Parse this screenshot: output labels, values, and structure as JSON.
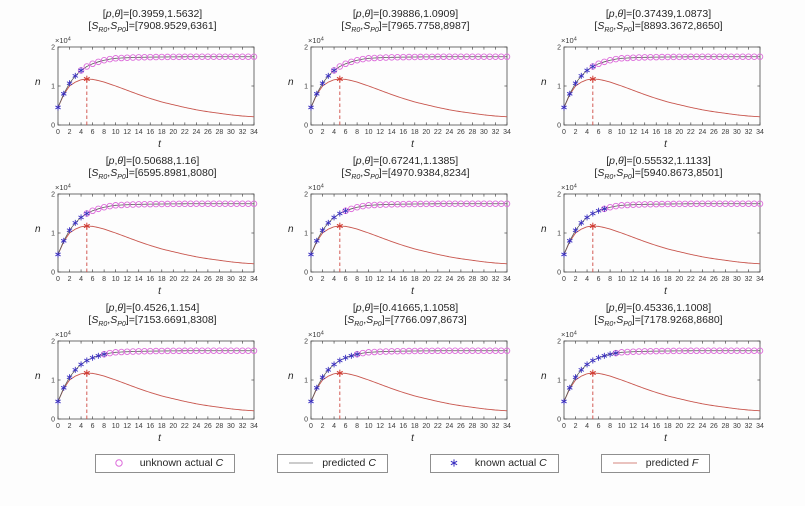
{
  "figure": {
    "background": "#fdfdfd",
    "labels": {
      "open_bracket": "[",
      "p": "p",
      "comma": ",",
      "theta": "θ",
      "close_eq": "]=",
      "S": "S",
      "sub_R0": "R0",
      "comma_S": ",",
      "sub_P0": "P0",
      "times_ten": "×10",
      "exponent": "4"
    },
    "colors": {
      "unknown_actual_C": "#dd6cdb",
      "predicted_C": "#5a5a5a",
      "known_actual_C": "#3a2fc1",
      "predicted_F": "#c8564e",
      "predicted_F_legend": "#d4877f",
      "predicted_C_legend": "#9a9a9a",
      "peak_marker": "#d23b32",
      "peak_dash": "#cf4a42",
      "axis": "#4a4a4a",
      "tick_text": "#3a3a3a"
    }
  },
  "chart_data": {
    "type": "line",
    "common": {
      "xlabel": "t",
      "ylabel": "n",
      "y_multiplier": "×10^4",
      "xlim": [
        0,
        34
      ],
      "ylim_scaled": [
        0,
        2
      ],
      "x_ticks": [
        0,
        2,
        4,
        6,
        8,
        10,
        12,
        14,
        16,
        18,
        20,
        22,
        24,
        26,
        28,
        30,
        32,
        34
      ],
      "y_ticks": [
        0,
        1,
        2
      ],
      "grid": false,
      "c_curve": {
        "t": [
          0,
          1,
          2,
          3,
          4,
          5,
          6,
          7,
          8,
          9,
          10,
          12,
          14,
          16,
          18,
          20,
          22,
          24,
          26,
          28,
          30,
          32,
          34
        ],
        "y": [
          0.45,
          0.8,
          1.07,
          1.26,
          1.4,
          1.5,
          1.57,
          1.62,
          1.66,
          1.69,
          1.71,
          1.725,
          1.735,
          1.74,
          1.744,
          1.747,
          1.749,
          1.75,
          1.75,
          1.75,
          1.75,
          1.75,
          1.75
        ]
      },
      "f_curve": {
        "t": [
          0,
          1,
          2,
          3,
          4,
          5,
          6,
          7,
          8,
          9,
          10,
          12,
          14,
          16,
          18,
          20,
          22,
          24,
          26,
          28,
          30,
          32,
          34
        ],
        "y": [
          0.45,
          0.78,
          1.0,
          1.1,
          1.16,
          1.18,
          1.17,
          1.14,
          1.1,
          1.05,
          1.0,
          0.89,
          0.78,
          0.68,
          0.59,
          0.52,
          0.45,
          0.39,
          0.34,
          0.3,
          0.26,
          0.23,
          0.21
        ]
      },
      "f_peak": {
        "t": 5,
        "y": 1.18
      }
    },
    "panels": [
      {
        "name": "subplot-1",
        "p_theta": "[0.3959,1.5632]",
        "s_values": "[7908.9529,6361]",
        "known_t_max": 4
      },
      {
        "name": "subplot-2",
        "p_theta": "[0.39886,1.0909]",
        "s_values": "[7965.7758,8987]",
        "known_t_max": 4
      },
      {
        "name": "subplot-3",
        "p_theta": "[0.37439,1.0873]",
        "s_values": "[8893.3672,8650]",
        "known_t_max": 5
      },
      {
        "name": "subplot-4",
        "p_theta": "[0.50688,1.16]",
        "s_values": "[6595.8981,8080]",
        "known_t_max": 5
      },
      {
        "name": "subplot-5",
        "p_theta": "[0.67241,1.1385]",
        "s_values": "[4970.9384,8234]",
        "known_t_max": 6
      },
      {
        "name": "subplot-6",
        "p_theta": "[0.55532,1.1133]",
        "s_values": "[5940.8673,8501]",
        "known_t_max": 7
      },
      {
        "name": "subplot-7",
        "p_theta": "[0.4526,1.154]",
        "s_values": "[7153.6691,8308]",
        "known_t_max": 8
      },
      {
        "name": "subplot-8",
        "p_theta": "[0.41665,1.1058]",
        "s_values": "[7766.097,8673]",
        "known_t_max": 8
      },
      {
        "name": "subplot-9",
        "p_theta": "[0.45336,1.1008]",
        "s_values": "[7178.9268,8680]",
        "known_t_max": 9
      }
    ]
  },
  "legend": {
    "items": [
      {
        "name": "unknown-actual-C",
        "marker": "circle",
        "color": "#dd6cdb",
        "label": "unknown actual ",
        "var": "C"
      },
      {
        "name": "predicted-C",
        "marker": "line",
        "color": "#9a9a9a",
        "label": "predicted ",
        "var": "C"
      },
      {
        "name": "known-actual-C",
        "marker": "asterisk",
        "color": "#3a2fc1",
        "label": "known actual ",
        "var": "C"
      },
      {
        "name": "predicted-F",
        "marker": "line",
        "color": "#d4877f",
        "label": "predicted ",
        "var": "F"
      }
    ]
  }
}
